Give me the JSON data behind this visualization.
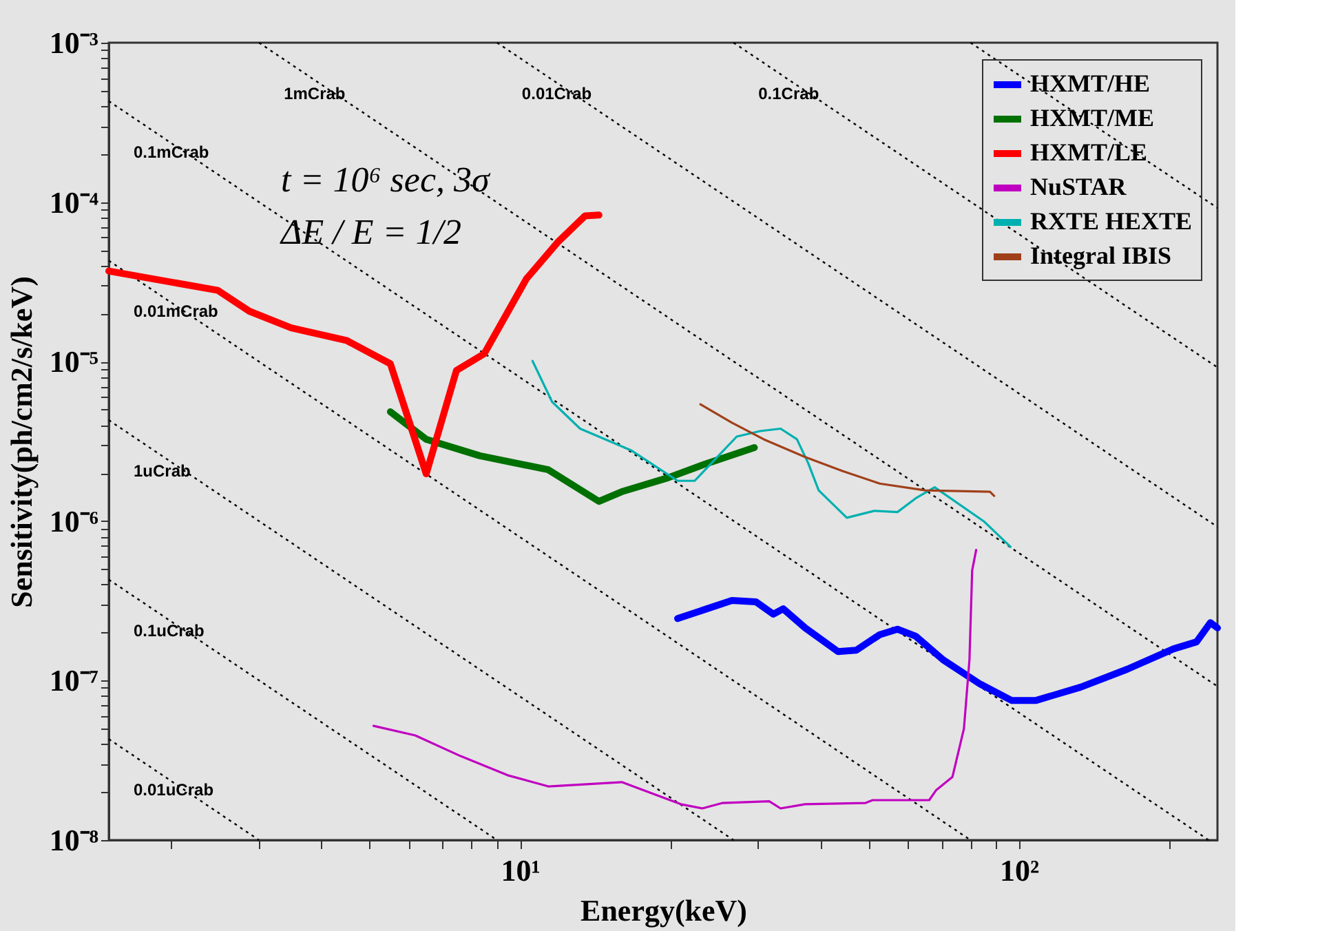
{
  "chart_data": {
    "type": "line",
    "xlabel": "Energy(keV)",
    "ylabel": "Sensitivity(ph/cm2/s/keV)",
    "log": "xy",
    "grid": false,
    "legend": "top right",
    "xlim": [
      1.5,
      250
    ],
    "ylim": [
      1e-08,
      0.001
    ],
    "xticks": [
      {
        "value": 2,
        "label": null
      },
      {
        "value": 3,
        "label": null
      },
      {
        "value": 4,
        "label": null
      },
      {
        "value": 5,
        "label": null
      },
      {
        "value": 6,
        "label": null
      },
      {
        "value": 7,
        "label": null
      },
      {
        "value": 8,
        "label": null
      },
      {
        "value": 9,
        "label": null
      },
      {
        "value": 10,
        "label": "10¹"
      },
      {
        "value": 20,
        "label": null
      },
      {
        "value": 30,
        "label": null
      },
      {
        "value": 40,
        "label": null
      },
      {
        "value": 50,
        "label": null
      },
      {
        "value": 60,
        "label": null
      },
      {
        "value": 70,
        "label": null
      },
      {
        "value": 80,
        "label": null
      },
      {
        "value": 90,
        "label": null
      },
      {
        "value": 100,
        "label": "10²"
      },
      {
        "value": 200,
        "label": null
      }
    ],
    "yticks": [
      {
        "value": 1e-08,
        "label": "10⁻⁸"
      },
      {
        "value": 2e-08,
        "label": null
      },
      {
        "value": 3e-08,
        "label": null
      },
      {
        "value": 4e-08,
        "label": null
      },
      {
        "value": 5e-08,
        "label": null
      },
      {
        "value": 6e-08,
        "label": null
      },
      {
        "value": 7e-08,
        "label": null
      },
      {
        "value": 8e-08,
        "label": null
      },
      {
        "value": 9e-08,
        "label": null
      },
      {
        "value": 1e-07,
        "label": "10⁻⁷"
      },
      {
        "value": 2e-07,
        "label": null
      },
      {
        "value": 3e-07,
        "label": null
      },
      {
        "value": 4e-07,
        "label": null
      },
      {
        "value": 5e-07,
        "label": null
      },
      {
        "value": 6e-07,
        "label": null
      },
      {
        "value": 7e-07,
        "label": null
      },
      {
        "value": 8e-07,
        "label": null
      },
      {
        "value": 9e-07,
        "label": null
      },
      {
        "value": 1e-06,
        "label": "10⁻⁶"
      },
      {
        "value": 2e-06,
        "label": null
      },
      {
        "value": 3e-06,
        "label": null
      },
      {
        "value": 4e-06,
        "label": null
      },
      {
        "value": 5e-06,
        "label": null
      },
      {
        "value": 6e-06,
        "label": null
      },
      {
        "value": 7e-06,
        "label": null
      },
      {
        "value": 8e-06,
        "label": null
      },
      {
        "value": 9e-06,
        "label": null
      },
      {
        "value": 1e-05,
        "label": "10⁻⁵"
      },
      {
        "value": 2e-05,
        "label": null
      },
      {
        "value": 3e-05,
        "label": null
      },
      {
        "value": 4e-05,
        "label": null
      },
      {
        "value": 5e-05,
        "label": null
      },
      {
        "value": 6e-05,
        "label": null
      },
      {
        "value": 7e-05,
        "label": null
      },
      {
        "value": 8e-05,
        "label": null
      },
      {
        "value": 9e-05,
        "label": null
      },
      {
        "value": 0.0001,
        "label": "10⁻⁴"
      },
      {
        "value": 0.0002,
        "label": null
      },
      {
        "value": 0.0003,
        "label": null
      },
      {
        "value": 0.0004,
        "label": null
      },
      {
        "value": 0.0005,
        "label": null
      },
      {
        "value": 0.0006,
        "label": null
      },
      {
        "value": 0.0007,
        "label": null
      },
      {
        "value": 0.0008,
        "label": null
      },
      {
        "value": 0.0009,
        "label": null
      },
      {
        "value": 0.001,
        "label": "10⁻³"
      }
    ],
    "annotations": [
      "t = 10⁶ sec, 3σ",
      "ΔE / E = 1/2"
    ],
    "series": [
      {
        "color": "#000000",
        "line_style": "dotted",
        "x": [
          80,
          250
        ],
        "values": [
          0.001,
          9.2e-05
        ]
      },
      {
        "name": "0.1Crab",
        "color": "#000000",
        "line_style": "dotted",
        "x": [
          26.8,
          250
        ],
        "values": [
          0.001,
          9.2e-06
        ]
      },
      {
        "name": "0.01Crab",
        "color": "#000000",
        "line_style": "dotted",
        "x": [
          9.0,
          250
        ],
        "values": [
          0.001,
          9.2e-07
        ]
      },
      {
        "name": "1mCrab",
        "color": "#000000",
        "line_style": "dotted",
        "x": [
          3.0,
          250
        ],
        "values": [
          0.001,
          9.2e-08
        ]
      },
      {
        "name": "0.1mCrab",
        "color": "#000000",
        "line_style": "dotted",
        "x": [
          1.5,
          240
        ],
        "values": [
          0.00043,
          1e-08
        ]
      },
      {
        "name": "0.01mCrab",
        "color": "#000000",
        "line_style": "dotted",
        "x": [
          1.5,
          80
        ],
        "values": [
          4.3e-05,
          1e-08
        ]
      },
      {
        "name": "1uCrab",
        "color": "#000000",
        "line_style": "dotted",
        "x": [
          1.5,
          26.8
        ],
        "values": [
          4.3e-06,
          1e-08
        ]
      },
      {
        "name": "0.1uCrab",
        "color": "#000000",
        "line_style": "dotted",
        "x": [
          1.5,
          9.0
        ],
        "values": [
          4.3e-07,
          1e-08
        ]
      },
      {
        "name": "0.01uCrab",
        "color": "#000000",
        "line_style": "dotted",
        "x": [
          1.5,
          3.0
        ],
        "values": [
          4.3e-08,
          1e-08
        ]
      },
      {
        "name": "HXMT/HE",
        "color": "#0000ff",
        "line_style": "solid",
        "x": [
          20.7,
          26.6,
          29.7,
          32.2,
          33.7,
          37.3,
          43.4,
          47.2,
          52.6,
          57.1,
          62.1,
          70.5,
          83.7,
          96.8,
          108,
          133,
          165,
          204,
          227,
          242,
          250
        ],
        "values": [
          2.45e-07,
          3.18e-07,
          3.12e-07,
          2.61e-07,
          2.82e-07,
          2.14e-07,
          1.52e-07,
          1.55e-07,
          1.94e-07,
          2.1e-07,
          1.9e-07,
          1.35e-07,
          9.5e-08,
          7.5e-08,
          7.5e-08,
          9.1e-08,
          1.18e-07,
          1.58e-07,
          1.75e-07,
          2.31e-07,
          2.14e-07
        ]
      },
      {
        "name": "HXMT/ME",
        "color": "#007000",
        "line_style": "solid",
        "x": [
          5.5,
          6.49,
          8.31,
          11.4,
          14.4,
          16.0,
          19.8,
          23.5,
          29.5
        ],
        "values": [
          4.85e-06,
          3.26e-06,
          2.57e-06,
          2.1e-06,
          1.33e-06,
          1.53e-06,
          1.87e-06,
          2.28e-06,
          2.89e-06
        ]
      },
      {
        "name": "HXMT/LE",
        "color": "#ff0000",
        "line_style": "solid",
        "x": [
          1.5,
          2.48,
          2.87,
          3.48,
          4.49,
          5.5,
          6.49,
          7.46,
          8.48,
          10.3,
          11.9,
          13.5,
          14.4
        ],
        "values": [
          3.7e-05,
          2.8e-05,
          2.07e-05,
          1.63e-05,
          1.36e-05,
          9.7e-06,
          1.98e-06,
          8.8e-06,
          1.12e-05,
          3.3e-05,
          5.6e-05,
          8.2e-05,
          8.3e-05
        ]
      },
      {
        "name": "NuSTAR",
        "color": "#c000c0",
        "line_style": "solid",
        "x": [
          5.09,
          6.17,
          7.61,
          9.45,
          11.4,
          16.0,
          21.0,
          23.2,
          25.5,
          31.6,
          33.3,
          37.3,
          49.3,
          50.9,
          66.1,
          68.2,
          73.6,
          77.6,
          79.6,
          80.6,
          82.1
        ],
        "values": [
          5.2e-08,
          4.53e-08,
          3.36e-08,
          2.55e-08,
          2.17e-08,
          2.31e-08,
          1.68e-08,
          1.58e-08,
          1.71e-08,
          1.75e-08,
          1.58e-08,
          1.68e-08,
          1.71e-08,
          1.78e-08,
          1.78e-08,
          2.05e-08,
          2.49e-08,
          5e-08,
          1.35e-07,
          4.9e-07,
          6.6e-07
        ]
      },
      {
        "name": "RXTE HEXTE",
        "color": "#00b0b0",
        "line_style": "solid",
        "x": [
          10.6,
          11.6,
          13.2,
          16.7,
          20.7,
          22.4,
          27.2,
          30.3,
          33.3,
          35.9,
          37.8,
          39.7,
          45.2,
          51.3,
          57.1,
          62.1,
          67.8,
          85.3,
          96.2
        ],
        "values": [
          1.01e-05,
          5.6e-06,
          3.8e-06,
          2.78e-06,
          1.79e-06,
          1.79e-06,
          3.39e-06,
          3.67e-06,
          3.8e-06,
          3.26e-06,
          2.32e-06,
          1.56e-06,
          1.05e-06,
          1.16e-06,
          1.14e-06,
          1.39e-06,
          1.63e-06,
          9.9e-07,
          6.9e-07
        ]
      },
      {
        "name": "Integral IBIS",
        "color": "#a0401a",
        "line_style": "solid",
        "x": [
          23.0,
          26.6,
          30.8,
          37.3,
          44.3,
          52.6,
          64.9,
          87.5,
          89.2
        ],
        "values": [
          5.4e-06,
          4.14e-06,
          3.26e-06,
          2.52e-06,
          2.06e-06,
          1.72e-06,
          1.56e-06,
          1.53e-06,
          1.44e-06
        ]
      }
    ]
  }
}
